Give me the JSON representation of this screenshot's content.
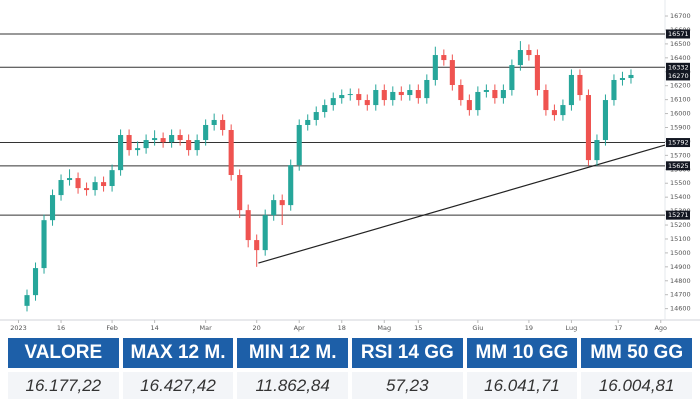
{
  "chart_data": {
    "type": "candlestick",
    "xlim": [
      -2,
      75
    ],
    "xticks": [
      {
        "value": -1,
        "label": "2023"
      },
      {
        "value": 4,
        "label": "16"
      },
      {
        "value": 10,
        "label": "Feb"
      },
      {
        "value": 15,
        "label": "14"
      },
      {
        "value": 21,
        "label": "Mar"
      },
      {
        "value": 27,
        "label": "20"
      },
      {
        "value": 32,
        "label": "Apr"
      },
      {
        "value": 37,
        "label": "18"
      },
      {
        "value": 42,
        "label": "Mag"
      },
      {
        "value": 46,
        "label": "15"
      },
      {
        "value": 53,
        "label": "Giu"
      },
      {
        "value": 59,
        "label": "19"
      },
      {
        "value": 64,
        "label": "Lug"
      },
      {
        "value": 69.5,
        "label": "17"
      },
      {
        "value": 74.5,
        "label": "Ago"
      }
    ],
    "ylim": [
      14540,
      16815
    ],
    "yticks": [
      14600,
      14700,
      14800,
      14900,
      15000,
      15100,
      15200,
      15300,
      15400,
      15500,
      15600,
      15700,
      15800,
      15900,
      16000,
      16100,
      16200,
      16300,
      16400,
      16500,
      16600,
      16700
    ],
    "up_color": "#26a69a",
    "down_color": "#ef5350",
    "open": [
      14620,
      14697,
      14891,
      15235,
      15415,
      15523,
      15537,
      15465,
      15451,
      15508,
      15480,
      15594,
      15846,
      15738,
      15752,
      15810,
      15824,
      15795,
      15846,
      15810,
      15738,
      15810,
      15918,
      15954,
      15882,
      15559,
      15307,
      15092,
      15020,
      15271,
      15379,
      15343,
      15630,
      15918,
      15954,
      16011,
      16061,
      16111,
      16133,
      16140,
      16097,
      16061,
      16169,
      16097,
      16155,
      16133,
      16169,
      16111,
      16241,
      16420,
      16384,
      16205,
      16097,
      16025,
      16155,
      16169,
      16111,
      16169,
      16348,
      16456,
      16420,
      16169,
      16025,
      15989,
      16061,
      16277,
      16133,
      15666,
      15810,
      16097,
      16241,
      16255
    ],
    "high": [
      14737,
      14931,
      15275,
      15455,
      15563,
      15600,
      15577,
      15505,
      15548,
      15548,
      15634,
      15886,
      15886,
      15800,
      15850,
      15880,
      15864,
      15886,
      15886,
      15850,
      15850,
      15958,
      16000,
      15994,
      15922,
      15599,
      15347,
      15132,
      15311,
      15419,
      15419,
      15670,
      15958,
      15994,
      16051,
      16101,
      16151,
      16173,
      16180,
      16180,
      16137,
      16209,
      16209,
      16195,
      16195,
      16209,
      16209,
      16281,
      16480,
      16460,
      16424,
      16245,
      16137,
      16195,
      16209,
      16209,
      16209,
      16388,
      16520,
      16496,
      16460,
      16209,
      16065,
      16101,
      16317,
      16317,
      16173,
      15850,
      16137,
      16281,
      16300,
      16317
    ],
    "low": [
      14580,
      14657,
      14851,
      15195,
      15375,
      15483,
      15425,
      15411,
      15411,
      15440,
      15440,
      15554,
      15698,
      15698,
      15712,
      15770,
      15755,
      15755,
      15770,
      15698,
      15698,
      15770,
      15878,
      15842,
      15519,
      15250,
      15040,
      14900,
      14980,
      15231,
      15200,
      15303,
      15590,
      15878,
      15914,
      15971,
      16021,
      16071,
      16093,
      16057,
      16021,
      16021,
      16057,
      16057,
      16093,
      16093,
      16071,
      16071,
      16201,
      16344,
      16165,
      16057,
      15985,
      15985,
      16115,
      16071,
      16071,
      16129,
      16308,
      16380,
      16129,
      15985,
      15949,
      15949,
      16021,
      16093,
      15626,
      15626,
      15770,
      16057,
      16201,
      16215
    ],
    "close": [
      14697,
      14891,
      15235,
      15415,
      15523,
      15537,
      15465,
      15451,
      15508,
      15480,
      15594,
      15846,
      15738,
      15752,
      15810,
      15824,
      15795,
      15846,
      15810,
      15738,
      15810,
      15918,
      15954,
      15882,
      15559,
      15307,
      15092,
      15020,
      15271,
      15379,
      15343,
      15630,
      15918,
      15954,
      16011,
      16061,
      16111,
      16133,
      16140,
      16097,
      16061,
      16169,
      16097,
      16155,
      16133,
      16169,
      16111,
      16241,
      16420,
      16384,
      16205,
      16097,
      16025,
      16155,
      16169,
      16111,
      16169,
      16348,
      16456,
      16420,
      16169,
      16025,
      15989,
      16061,
      16277,
      16133,
      15666,
      15810,
      16097,
      16241,
      16255,
      16277
    ],
    "levels": [
      16571,
      16332,
      15792,
      15625,
      15271
    ],
    "last_price": 16270,
    "trendline": {
      "x": [
        27.2,
        75
      ],
      "y": [
        14927,
        15774
      ]
    }
  },
  "table": {
    "header": [
      "VALORE",
      "MAX 12 M.",
      "MIN 12 M.",
      "RSI 14 GG",
      "MM 10 GG",
      "MM 50 GG"
    ],
    "rows": [
      [
        "16.177,22",
        "16.427,42",
        "11.862,84",
        "57,23",
        "16.041,71",
        "16.004,81"
      ]
    ]
  }
}
